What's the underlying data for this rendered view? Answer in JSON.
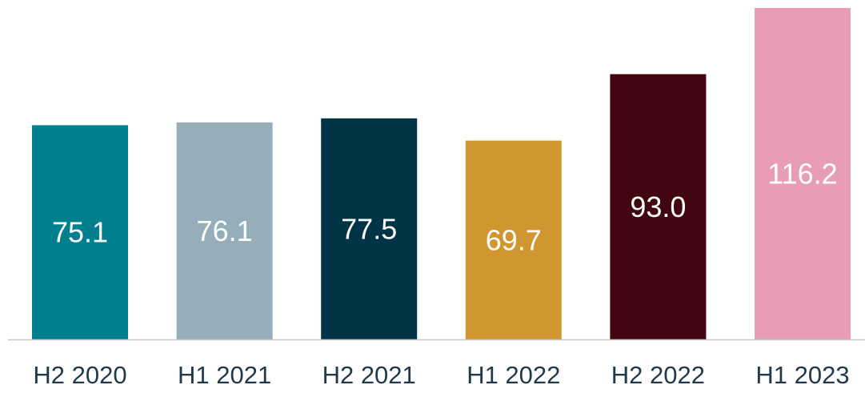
{
  "chart_data": {
    "type": "bar",
    "categories": [
      "H2 2020",
      "H1 2021",
      "H2 2021",
      "H1 2022",
      "H2 2022",
      "H1 2023"
    ],
    "values": [
      75.1,
      76.1,
      77.5,
      69.7,
      93.0,
      116.2
    ],
    "value_labels": [
      "75.1",
      "76.1",
      "77.5",
      "69.7",
      "93.0",
      "116.2"
    ],
    "colors": [
      "#007f8f",
      "#96aeb9",
      "#003446",
      "#d0962f",
      "#420611",
      "#e99db5"
    ]
  }
}
